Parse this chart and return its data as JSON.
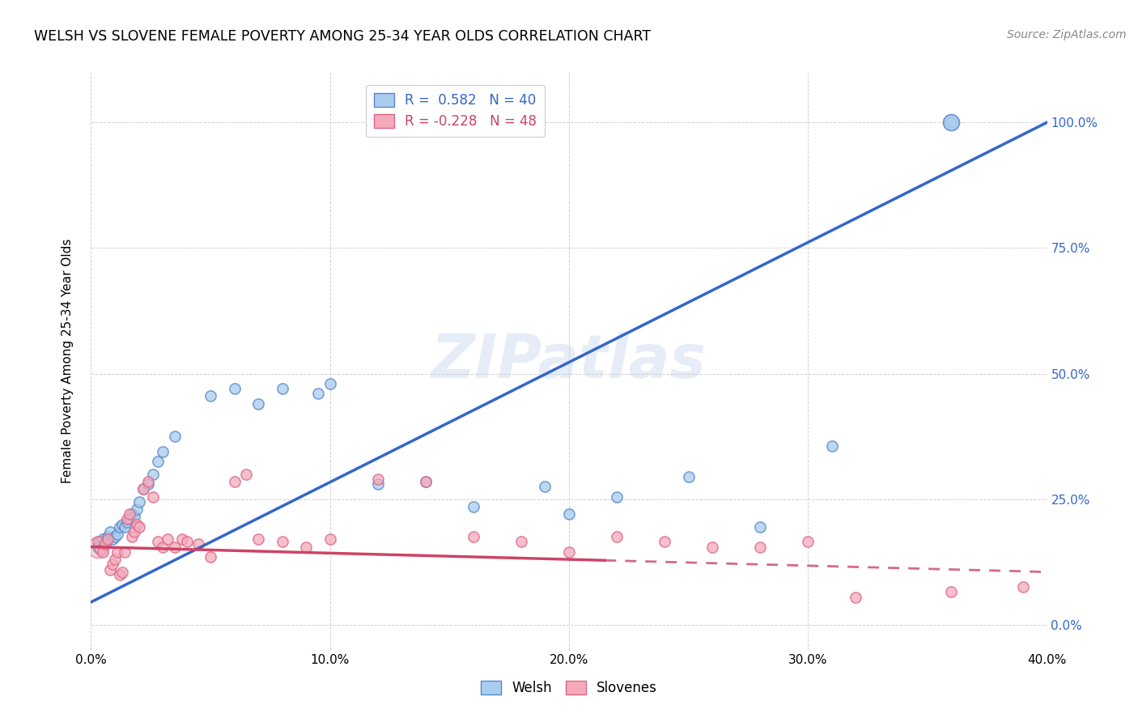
{
  "title": "WELSH VS SLOVENE FEMALE POVERTY AMONG 25-34 YEAR OLDS CORRELATION CHART",
  "source": "Source: ZipAtlas.com",
  "ylabel": "Female Poverty Among 25-34 Year Olds",
  "xlabel_ticks": [
    "0.0%",
    "10.0%",
    "20.0%",
    "30.0%",
    "40.0%"
  ],
  "xlabel_vals": [
    0.0,
    0.1,
    0.2,
    0.3,
    0.4
  ],
  "ylabel_ticks_right": [
    "0.0%",
    "25.0%",
    "50.0%",
    "75.0%",
    "100.0%"
  ],
  "ylabel_vals_right": [
    0.0,
    0.25,
    0.5,
    0.75,
    1.0
  ],
  "xlim": [
    0.0,
    0.4
  ],
  "ylim": [
    -0.05,
    1.1
  ],
  "welsh_color": "#aaccee",
  "slovene_color": "#f4aabb",
  "welsh_edge_color": "#5588cc",
  "slovene_edge_color": "#dd6688",
  "welsh_line_color": "#3366cc",
  "slovene_line_color": "#cc4466",
  "legend_welsh_label": "Welsh",
  "legend_slovene_label": "Slovenes",
  "welsh_R": 0.582,
  "welsh_N": 40,
  "slovene_R": -0.228,
  "slovene_N": 48,
  "watermark": "ZIPatlas",
  "welsh_line_x0": 0.0,
  "welsh_line_y0": 0.045,
  "welsh_line_x1": 0.4,
  "welsh_line_y1": 1.0,
  "slovene_line_x0": 0.0,
  "slovene_line_y0": 0.155,
  "slovene_line_x1": 0.4,
  "slovene_line_y1": 0.105,
  "welsh_x": [
    0.003,
    0.004,
    0.005,
    0.006,
    0.007,
    0.008,
    0.009,
    0.01,
    0.011,
    0.012,
    0.013,
    0.014,
    0.015,
    0.016,
    0.017,
    0.018,
    0.019,
    0.02,
    0.022,
    0.024,
    0.026,
    0.028,
    0.03,
    0.035,
    0.05,
    0.06,
    0.07,
    0.08,
    0.095,
    0.1,
    0.12,
    0.14,
    0.16,
    0.19,
    0.2,
    0.22,
    0.25,
    0.28,
    0.31,
    0.36
  ],
  "welsh_y": [
    0.155,
    0.165,
    0.17,
    0.165,
    0.175,
    0.185,
    0.17,
    0.175,
    0.18,
    0.195,
    0.2,
    0.195,
    0.205,
    0.21,
    0.22,
    0.215,
    0.23,
    0.245,
    0.27,
    0.28,
    0.3,
    0.325,
    0.345,
    0.375,
    0.455,
    0.47,
    0.44,
    0.47,
    0.46,
    0.48,
    0.28,
    0.285,
    0.235,
    0.275,
    0.22,
    0.255,
    0.295,
    0.195,
    0.355,
    1.0
  ],
  "slovene_x": [
    0.003,
    0.004,
    0.005,
    0.006,
    0.007,
    0.008,
    0.009,
    0.01,
    0.011,
    0.012,
    0.013,
    0.014,
    0.015,
    0.016,
    0.017,
    0.018,
    0.019,
    0.02,
    0.022,
    0.024,
    0.026,
    0.028,
    0.03,
    0.032,
    0.035,
    0.038,
    0.04,
    0.045,
    0.05,
    0.06,
    0.065,
    0.07,
    0.08,
    0.09,
    0.1,
    0.12,
    0.14,
    0.16,
    0.18,
    0.2,
    0.22,
    0.24,
    0.26,
    0.28,
    0.3,
    0.32,
    0.36,
    0.39
  ],
  "slovene_y": [
    0.165,
    0.15,
    0.145,
    0.16,
    0.17,
    0.11,
    0.12,
    0.13,
    0.145,
    0.1,
    0.105,
    0.145,
    0.21,
    0.22,
    0.175,
    0.185,
    0.2,
    0.195,
    0.27,
    0.285,
    0.255,
    0.165,
    0.155,
    0.17,
    0.155,
    0.17,
    0.165,
    0.16,
    0.135,
    0.285,
    0.3,
    0.17,
    0.165,
    0.155,
    0.17,
    0.29,
    0.285,
    0.175,
    0.165,
    0.145,
    0.175,
    0.165,
    0.155,
    0.155,
    0.165,
    0.055,
    0.065,
    0.075
  ]
}
